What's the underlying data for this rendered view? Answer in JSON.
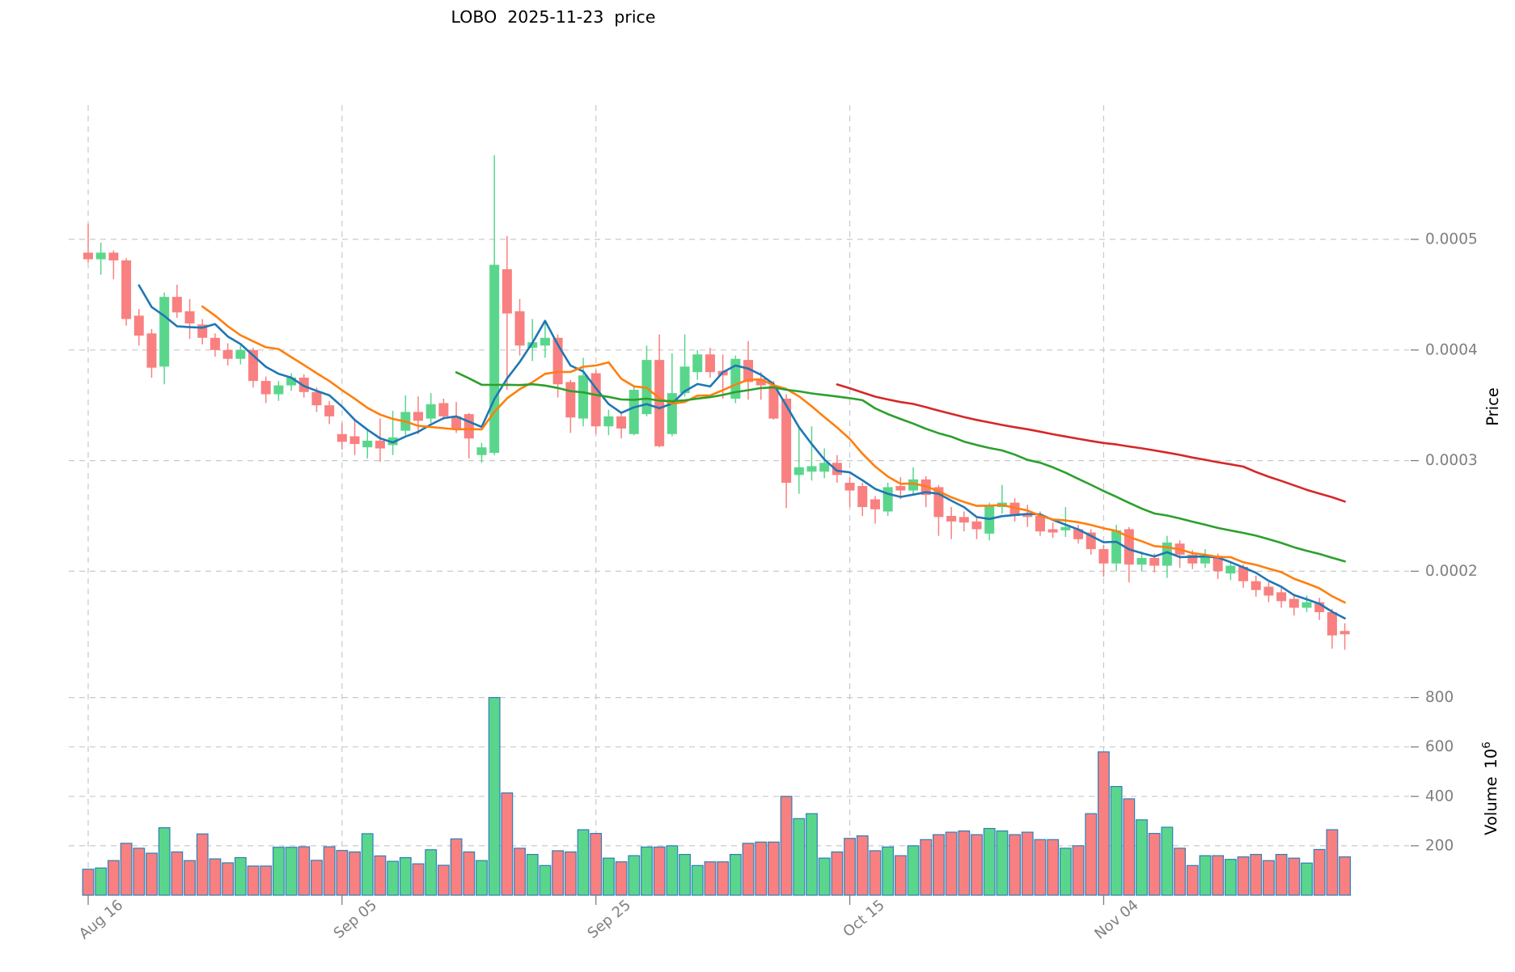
{
  "figure": {
    "title": "LOBO  2025-11-23  price",
    "background": "#ffffff"
  },
  "axes": {
    "x_tick_labels": [
      "Aug 16",
      "Sep 05",
      "Sep 25",
      "Oct 15",
      "Nov 04"
    ],
    "x_tick_indices": [
      0,
      20,
      40,
      60,
      80
    ],
    "price_axis": {
      "label": "Price",
      "tick_labels": [
        "0.0002",
        "0.0003",
        "0.0004",
        "0.0005"
      ],
      "tick_values": [
        0.0002,
        0.0003,
        0.0004,
        0.0005
      ],
      "range": [
        0.000106,
        0.000621
      ]
    },
    "volume_axis": {
      "label": "Volume",
      "scale_base": "10",
      "scale_exponent": "6",
      "tick_labels": [
        "200",
        "400",
        "600",
        "800"
      ],
      "tick_values": [
        200,
        400,
        600,
        800
      ],
      "range": [
        0,
        860
      ]
    },
    "tick_label_color": "#7f7f7f",
    "axis_label_color": "#000000",
    "grid_color": "#c9c9c9"
  },
  "style": {
    "up_color": "#5ad68c",
    "down_color": "#f98080",
    "volume_edge_color": "#2d7fb8",
    "ma_colors": {
      "ma5": "#1f77b4",
      "ma10": "#ff7f0e",
      "ma30": "#2ca02c",
      "ma60": "#d62728"
    }
  },
  "chart_data": {
    "type": "candlestick",
    "title": "LOBO  2025-11-23  price",
    "ma_periods": [
      5,
      10,
      30,
      60
    ],
    "columns": [
      "date",
      "open",
      "high",
      "low",
      "close",
      "volume_1e6"
    ],
    "candles": [
      [
        "Aug 16",
        0.000488,
        0.000514,
        0.000479,
        0.000482,
        105
      ],
      [
        "Aug 17",
        0.000482,
        0.000497,
        0.000468,
        0.000488,
        110
      ],
      [
        "Aug 18",
        0.000488,
        0.00049,
        0.000464,
        0.000481,
        140
      ],
      [
        "Aug 19",
        0.000481,
        0.000483,
        0.000422,
        0.000428,
        210
      ],
      [
        "Aug 20",
        0.000431,
        0.000437,
        0.000404,
        0.000413,
        190
      ],
      [
        "Aug 21",
        0.000415,
        0.000419,
        0.000375,
        0.000384,
        170
      ],
      [
        "Aug 22",
        0.000385,
        0.000452,
        0.000369,
        0.000448,
        273
      ],
      [
        "Aug 23",
        0.000448,
        0.000459,
        0.000429,
        0.000434,
        175
      ],
      [
        "Aug 24",
        0.000435,
        0.000446,
        0.00041,
        0.000424,
        140
      ],
      [
        "Aug 25",
        0.000423,
        0.000428,
        0.000405,
        0.000411,
        248
      ],
      [
        "Aug 26",
        0.000411,
        0.000415,
        0.000394,
        0.0004,
        147
      ],
      [
        "Aug 27",
        0.0004,
        0.000406,
        0.000386,
        0.000392,
        131
      ],
      [
        "Aug 28",
        0.000392,
        0.000404,
        0.000387,
        0.0004,
        152
      ],
      [
        "Aug 29",
        0.0004,
        0.000402,
        0.000366,
        0.000372,
        118
      ],
      [
        "Aug 30",
        0.000372,
        0.000376,
        0.000352,
        0.00036,
        118
      ],
      [
        "Aug 31",
        0.00036,
        0.000372,
        0.000354,
        0.000368,
        194
      ],
      [
        "Sep 01",
        0.000368,
        0.000379,
        0.000363,
        0.000375,
        194
      ],
      [
        "Sep 02",
        0.000375,
        0.000378,
        0.000357,
        0.000362,
        196
      ],
      [
        "Sep 03",
        0.000362,
        0.000366,
        0.000344,
        0.00035,
        141
      ],
      [
        "Sep 04",
        0.00035,
        0.000354,
        0.000333,
        0.00034,
        196
      ],
      [
        "Sep 05",
        0.000324,
        0.000334,
        0.00031,
        0.000317,
        181
      ],
      [
        "Sep 06",
        0.000322,
        0.000337,
        0.000305,
        0.000315,
        175
      ],
      [
        "Sep 07",
        0.000312,
        0.000329,
        0.000302,
        0.000318,
        249
      ],
      [
        "Sep 08",
        0.000318,
        0.000338,
        0.000299,
        0.000311,
        159
      ],
      [
        "Sep 09",
        0.000314,
        0.000345,
        0.000305,
        0.000321,
        137
      ],
      [
        "Sep 10",
        0.000327,
        0.000359,
        0.000323,
        0.000344,
        152
      ],
      [
        "Sep 11",
        0.000344,
        0.000358,
        0.000324,
        0.000336,
        127
      ],
      [
        "Sep 12",
        0.000338,
        0.000361,
        0.000334,
        0.000351,
        184
      ],
      [
        "Sep 13",
        0.000352,
        0.000356,
        0.000337,
        0.00034,
        121
      ],
      [
        "Sep 14",
        0.00034,
        0.000353,
        0.000325,
        0.000329,
        228
      ],
      [
        "Sep 15",
        0.000342,
        0.000343,
        0.000302,
        0.00032,
        175
      ],
      [
        "Sep 16",
        0.000305,
        0.000316,
        0.000298,
        0.000312,
        140
      ],
      [
        "Sep 17",
        0.000307,
        0.000576,
        0.000305,
        0.000477,
        800
      ],
      [
        "Sep 18",
        0.000473,
        0.000503,
        0.000364,
        0.000433,
        414
      ],
      [
        "Sep 19",
        0.000435,
        0.000446,
        0.000395,
        0.000404,
        190
      ],
      [
        "Sep 20",
        0.000402,
        0.000428,
        0.00039,
        0.000407,
        165
      ],
      [
        "Sep 21",
        0.000404,
        0.000427,
        0.000393,
        0.000411,
        120
      ],
      [
        "Sep 22",
        0.000411,
        0.000414,
        0.000357,
        0.000369,
        180
      ],
      [
        "Sep 23",
        0.000371,
        0.000373,
        0.000325,
        0.000339,
        175
      ],
      [
        "Sep 24",
        0.000338,
        0.000393,
        0.000331,
        0.000377,
        265
      ],
      [
        "Sep 25",
        0.000379,
        0.000382,
        0.000324,
        0.000331,
        250
      ],
      [
        "Sep 26",
        0.000331,
        0.000346,
        0.000323,
        0.00034,
        150
      ],
      [
        "Sep 27",
        0.00034,
        0.000344,
        0.00032,
        0.000329,
        135
      ],
      [
        "Sep 28",
        0.000324,
        0.000367,
        0.000323,
        0.000364,
        160
      ],
      [
        "Sep 29",
        0.000342,
        0.000404,
        0.00034,
        0.000391,
        195
      ],
      [
        "Sep 30",
        0.000391,
        0.000414,
        0.000312,
        0.000313,
        195
      ],
      [
        "Oct 01",
        0.000324,
        0.000397,
        0.000322,
        0.000361,
        200
      ],
      [
        "Oct 02",
        0.000361,
        0.000414,
        0.000358,
        0.000385,
        165
      ],
      [
        "Oct 03",
        0.00038,
        0.0004,
        0.000373,
        0.000396,
        120
      ],
      [
        "Oct 04",
        0.000396,
        0.000402,
        0.000375,
        0.00038,
        135
      ],
      [
        "Oct 05",
        0.000381,
        0.000396,
        0.000356,
        0.000377,
        135
      ],
      [
        "Oct 06",
        0.000356,
        0.000395,
        0.000352,
        0.000392,
        165
      ],
      [
        "Oct 07",
        0.000391,
        0.000408,
        0.000355,
        0.000371,
        210
      ],
      [
        "Oct 08",
        0.000374,
        0.00038,
        0.000355,
        0.000368,
        215
      ],
      [
        "Oct 09",
        0.000368,
        0.000372,
        0.000337,
        0.000338,
        215
      ],
      [
        "Oct 10",
        0.000356,
        0.00036,
        0.000257,
        0.00028,
        400
      ],
      [
        "Oct 11",
        0.000287,
        0.000331,
        0.00027,
        0.000294,
        310
      ],
      [
        "Oct 12",
        0.00029,
        0.000331,
        0.000282,
        0.000295,
        330
      ],
      [
        "Oct 13",
        0.00029,
        0.000311,
        0.000284,
        0.000298,
        150
      ],
      [
        "Oct 14",
        0.000298,
        0.000305,
        0.00028,
        0.000287,
        175
      ],
      [
        "Oct 15",
        0.00028,
        0.000285,
        0.000258,
        0.000273,
        230
      ],
      [
        "Oct 16",
        0.000277,
        0.00028,
        0.00025,
        0.000258,
        240
      ],
      [
        "Oct 17",
        0.000265,
        0.000268,
        0.000243,
        0.000256,
        180
      ],
      [
        "Oct 18",
        0.000254,
        0.00028,
        0.00025,
        0.000276,
        195
      ],
      [
        "Oct 19",
        0.000277,
        0.000285,
        0.000265,
        0.000273,
        160
      ],
      [
        "Oct 20",
        0.000273,
        0.000294,
        0.00027,
        0.000283,
        200
      ],
      [
        "Oct 21",
        0.000283,
        0.000286,
        0.000258,
        0.000269,
        225
      ],
      [
        "Oct 22",
        0.000276,
        0.000278,
        0.000232,
        0.000249,
        245
      ],
      [
        "Oct 23",
        0.00025,
        0.000258,
        0.000229,
        0.000245,
        255
      ],
      [
        "Oct 24",
        0.000249,
        0.000254,
        0.000236,
        0.000244,
        260
      ],
      [
        "Oct 25",
        0.000245,
        0.00025,
        0.000229,
        0.000238,
        245
      ],
      [
        "Oct 26",
        0.000234,
        0.000262,
        0.000228,
        0.00026,
        270
      ],
      [
        "Oct 27",
        0.000258,
        0.000278,
        0.000252,
        0.000262,
        260
      ],
      [
        "Oct 28",
        0.000262,
        0.000266,
        0.000245,
        0.00025,
        245
      ],
      [
        "Oct 29",
        0.000252,
        0.00026,
        0.00024,
        0.000249,
        255
      ],
      [
        "Oct 30",
        0.00025,
        0.000254,
        0.000232,
        0.000236,
        225
      ],
      [
        "Oct 31",
        0.000238,
        0.000244,
        0.00023,
        0.000235,
        225
      ],
      [
        "Nov 01",
        0.000237,
        0.000258,
        0.000231,
        0.00024,
        190
      ],
      [
        "Nov 02",
        0.000238,
        0.000242,
        0.000225,
        0.000229,
        200
      ],
      [
        "Nov 03",
        0.000235,
        0.000238,
        0.000215,
        0.00022,
        330
      ],
      [
        "Nov 04",
        0.00022,
        0.000224,
        0.000195,
        0.000207,
        580
      ],
      [
        "Nov 05",
        0.000207,
        0.000242,
        0.0002,
        0.000237,
        440
      ],
      [
        "Nov 06",
        0.000238,
        0.00024,
        0.00019,
        0.000206,
        390
      ],
      [
        "Nov 07",
        0.000206,
        0.000218,
        0.0002,
        0.000212,
        305
      ],
      [
        "Nov 08",
        0.000212,
        0.000216,
        0.000199,
        0.000205,
        250
      ],
      [
        "Nov 09",
        0.000205,
        0.000232,
        0.000194,
        0.000226,
        275
      ],
      [
        "Nov 10",
        0.000225,
        0.000228,
        0.000203,
        0.000215,
        190
      ],
      [
        "Nov 11",
        0.000215,
        0.000219,
        0.000202,
        0.000207,
        120
      ],
      [
        "Nov 12",
        0.000207,
        0.00022,
        0.000203,
        0.000214,
        160
      ],
      [
        "Nov 13",
        0.000214,
        0.000216,
        0.000193,
        0.0002,
        160
      ],
      [
        "Nov 14",
        0.000198,
        0.000208,
        0.000192,
        0.000205,
        145
      ],
      [
        "Nov 15",
        0.000204,
        0.000206,
        0.000185,
        0.000191,
        155
      ],
      [
        "Nov 16",
        0.000191,
        0.000196,
        0.000177,
        0.000183,
        165
      ],
      [
        "Nov 17",
        0.000186,
        0.00019,
        0.000172,
        0.000178,
        140
      ],
      [
        "Nov 18",
        0.000181,
        0.000185,
        0.000167,
        0.000173,
        165
      ],
      [
        "Nov 19",
        0.000175,
        0.000179,
        0.00016,
        0.000167,
        150
      ],
      [
        "Nov 20",
        0.000167,
        0.000178,
        0.000163,
        0.000172,
        130
      ],
      [
        "Nov 21",
        0.000172,
        0.000176,
        0.000156,
        0.000163,
        185
      ],
      [
        "Nov 22",
        0.000163,
        0.000166,
        0.00013,
        0.000142,
        265
      ],
      [
        "Nov 23",
        0.000146,
        0.000153,
        0.000129,
        0.000143,
        155
      ]
    ]
  }
}
